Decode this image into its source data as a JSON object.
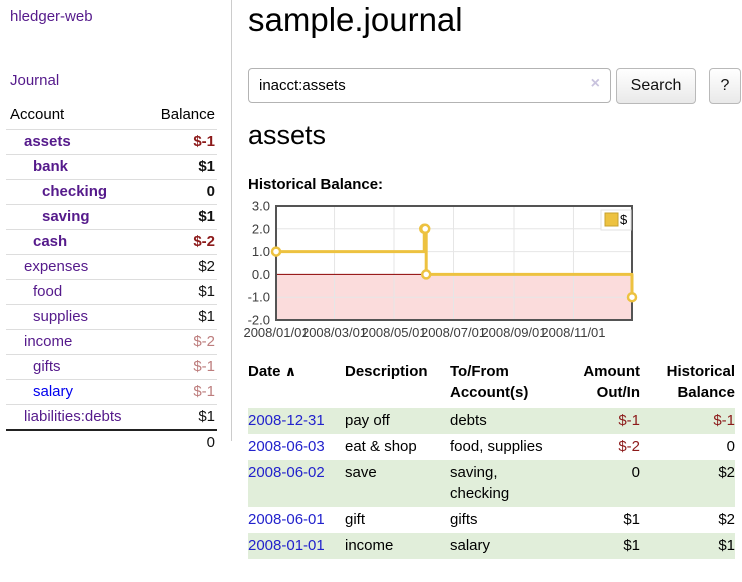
{
  "sidebar": {
    "app_title": "hledger-web",
    "journal_link": "Journal",
    "account_header": "Account",
    "balance_header": "Balance",
    "accounts": [
      {
        "name": "assets",
        "indent": 0,
        "bold": true,
        "balance": "$-1",
        "balance_class": "neg-strong"
      },
      {
        "name": "bank",
        "indent": 1,
        "bold": true,
        "balance": "$1",
        "balance_class": "pos"
      },
      {
        "name": "checking",
        "indent": 2,
        "bold": true,
        "balance": "0",
        "balance_class": "pos"
      },
      {
        "name": "saving",
        "indent": 2,
        "bold": true,
        "balance": "$1",
        "balance_class": "pos"
      },
      {
        "name": "cash",
        "indent": 1,
        "bold": true,
        "balance": "$-2",
        "balance_class": "neg-strong"
      },
      {
        "name": "expenses",
        "indent": 0,
        "bold": false,
        "balance": "$2",
        "balance_class": "pos"
      },
      {
        "name": "food",
        "indent": 1,
        "bold": false,
        "balance": "$1",
        "balance_class": "pos"
      },
      {
        "name": "supplies",
        "indent": 1,
        "bold": false,
        "balance": "$1",
        "balance_class": "pos"
      },
      {
        "name": "income",
        "indent": 0,
        "bold": false,
        "balance": "$-2",
        "balance_class": "neg-soft"
      },
      {
        "name": "gifts",
        "indent": 1,
        "bold": false,
        "balance": "$-1",
        "balance_class": "neg-soft"
      },
      {
        "name": "salary",
        "indent": 1,
        "bold": false,
        "balance": "$-1",
        "balance_class": "neg-soft",
        "link_variant": "unvisited"
      },
      {
        "name": "liabilities:debts",
        "indent": 0,
        "bold": false,
        "balance": "$1",
        "balance_class": "pos"
      }
    ],
    "total": "0"
  },
  "main": {
    "title": "sample.journal",
    "search": {
      "value": "inacct:assets",
      "clear_icon": "×",
      "search_button": "Search",
      "help_button": "?"
    },
    "account_heading": "assets",
    "section_label": "Historical Balance:"
  },
  "chart_data": {
    "type": "line",
    "mode": "steps",
    "title": "Historical Balance",
    "series": [
      {
        "name": "$",
        "points": [
          {
            "date": "2008-01-01",
            "value": 1
          },
          {
            "date": "2008-06-01",
            "value": 2
          },
          {
            "date": "2008-06-02",
            "value": 2
          },
          {
            "date": "2008-06-03",
            "value": 0
          },
          {
            "date": "2008-12-31",
            "value": -1
          }
        ]
      }
    ],
    "x_range": [
      "2008-01-01",
      "2008-12-31"
    ],
    "ylim": [
      -2,
      3
    ],
    "y_ticks": [
      "3.0",
      "2.0",
      "1.0",
      "0.0",
      "-1.0",
      "-2.0"
    ],
    "x_ticks": [
      {
        "label": "2008/01/01",
        "date": "2008-01-01"
      },
      {
        "label": "2008/03/01",
        "date": "2008-03-01"
      },
      {
        "label": "2008/05/01",
        "date": "2008-05-01"
      },
      {
        "label": "2008/07/01",
        "date": "2008-07-01"
      },
      {
        "label": "2008/09/01",
        "date": "2008-09-01"
      },
      {
        "label": "2008/11/01",
        "date": "2008-11-01"
      }
    ],
    "legend": {
      "label": "$",
      "position": "top-right"
    },
    "grid": true,
    "negative_region_shaded": true
  },
  "register": {
    "headers": [
      "Date",
      "Description",
      "To/From Account(s)",
      "Amount Out/In",
      "Historical Balance"
    ],
    "sort_indicator": "∧",
    "rows": [
      {
        "date": "2008-12-31",
        "description": "pay off",
        "accounts": "debts",
        "amount": "$-1",
        "amount_negative": true,
        "balance": "$-1",
        "balance_negative": true
      },
      {
        "date": "2008-06-03",
        "description": "eat & shop",
        "accounts": "food, supplies",
        "amount": "$-2",
        "amount_negative": true,
        "balance": "0",
        "balance_negative": false
      },
      {
        "date": "2008-06-02",
        "description": "save",
        "accounts": "saving, checking",
        "amount": "0",
        "amount_negative": false,
        "balance": "$2",
        "balance_negative": false
      },
      {
        "date": "2008-06-01",
        "description": "gift",
        "accounts": "gifts",
        "amount": "$1",
        "amount_negative": false,
        "balance": "$2",
        "balance_negative": false
      },
      {
        "date": "2008-01-01",
        "description": "income",
        "accounts": "salary",
        "amount": "$1",
        "amount_negative": false,
        "balance": "$1",
        "balance_negative": false
      }
    ]
  },
  "colors": {
    "link_purple": "#551a8b",
    "link_blue": "#0000ee",
    "date_link": "#2222cc",
    "negative_strong": "#8c1a1a",
    "negative_soft": "#bd7d7d",
    "row_green": "#e1eeda",
    "chart_line": "#edc240",
    "chart_line_edge": "#c7a12e",
    "chart_negative_fill": "#fbdcdc",
    "chart_zero_line": "#8b0000",
    "chart_border": "#545454",
    "chart_grid": "#e6e6e6"
  }
}
